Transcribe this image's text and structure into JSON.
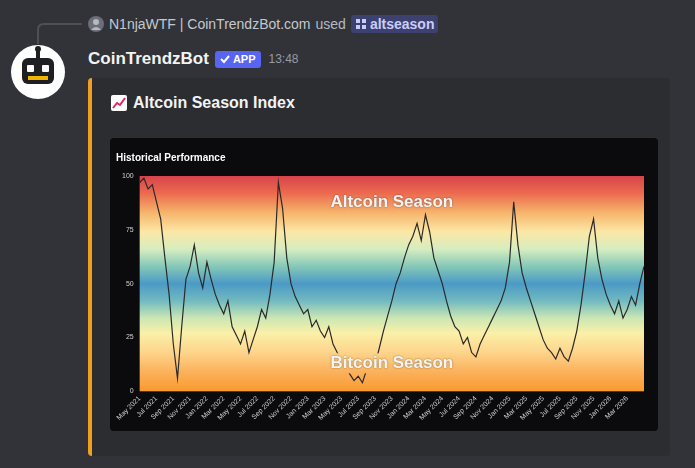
{
  "message": {
    "reply_user": "N1njaWTF | CoinTrendzBot.com",
    "reply_action": "used",
    "command": "altseason",
    "author": "CoinTrendzBot",
    "badge": "APP",
    "time": "13:48",
    "embed_title": "Altcoin Season Index"
  },
  "chart_data": {
    "type": "line",
    "title": "Historical Performance",
    "color": "#2a2a2a",
    "grid": false,
    "annotations": [
      "Altcoin Season",
      "Bitcoin Season"
    ],
    "ylim": [
      0,
      100
    ],
    "yticks": [
      0,
      25,
      50,
      75,
      100
    ],
    "categories": [
      "May 2021",
      null,
      null,
      null,
      "Jul 2021",
      null,
      null,
      null,
      "Sep 2021",
      null,
      null,
      null,
      "Nov 2021",
      null,
      null,
      null,
      "Jan 2022",
      null,
      null,
      null,
      "Mar 2022",
      null,
      null,
      null,
      "May 2022",
      null,
      null,
      null,
      "Jul 2022",
      null,
      null,
      null,
      "Sep 2022",
      null,
      null,
      null,
      "Nov 2022",
      null,
      null,
      null,
      "Jan 2023",
      null,
      null,
      null,
      "Mar 2023",
      null,
      null,
      null,
      "May 2023",
      null,
      null,
      null,
      "Jul 2023",
      null,
      null,
      null,
      "Sep 2023",
      null,
      null,
      null,
      "Nov 2023",
      null,
      null,
      null,
      "Jan 2024",
      null,
      null,
      null,
      "Mar 2024",
      null,
      null,
      null,
      "May 2024",
      null,
      null,
      null,
      "Jul 2024",
      null,
      null,
      null,
      "Sep 2024",
      null,
      null,
      null,
      "Nov 2024",
      null,
      null,
      null,
      "Jan 2025",
      null,
      null,
      null,
      "Mar 2025",
      null,
      null,
      null,
      "May 2025",
      null,
      null,
      null,
      "Jul 2025",
      null,
      null,
      null,
      "Sep 2025",
      null,
      null,
      null,
      "Nov 2025",
      null,
      null,
      null,
      "Jan 2026",
      null,
      null,
      null,
      "Mar 2026",
      null,
      null,
      null,
      null
    ],
    "values": [
      97,
      99,
      94,
      96,
      88,
      80,
      62,
      45,
      22,
      6,
      30,
      52,
      58,
      68,
      55,
      48,
      60,
      52,
      45,
      40,
      36,
      42,
      30,
      26,
      22,
      28,
      18,
      24,
      30,
      38,
      34,
      45,
      60,
      97,
      85,
      62,
      50,
      44,
      40,
      36,
      38,
      30,
      33,
      28,
      25,
      30,
      22,
      18,
      15,
      12,
      8,
      5,
      7,
      4,
      10,
      14,
      12,
      20,
      28,
      35,
      42,
      50,
      55,
      62,
      68,
      72,
      78,
      70,
      82,
      74,
      62,
      56,
      50,
      42,
      35,
      30,
      28,
      22,
      25,
      18,
      16,
      22,
      26,
      30,
      34,
      38,
      42,
      48,
      60,
      88,
      68,
      55,
      48,
      42,
      36,
      30,
      24,
      20,
      18,
      15,
      20,
      16,
      14,
      20,
      28,
      40,
      55,
      72,
      80,
      62,
      52,
      45,
      40,
      36,
      42,
      34,
      38,
      44,
      40,
      50,
      58
    ]
  }
}
